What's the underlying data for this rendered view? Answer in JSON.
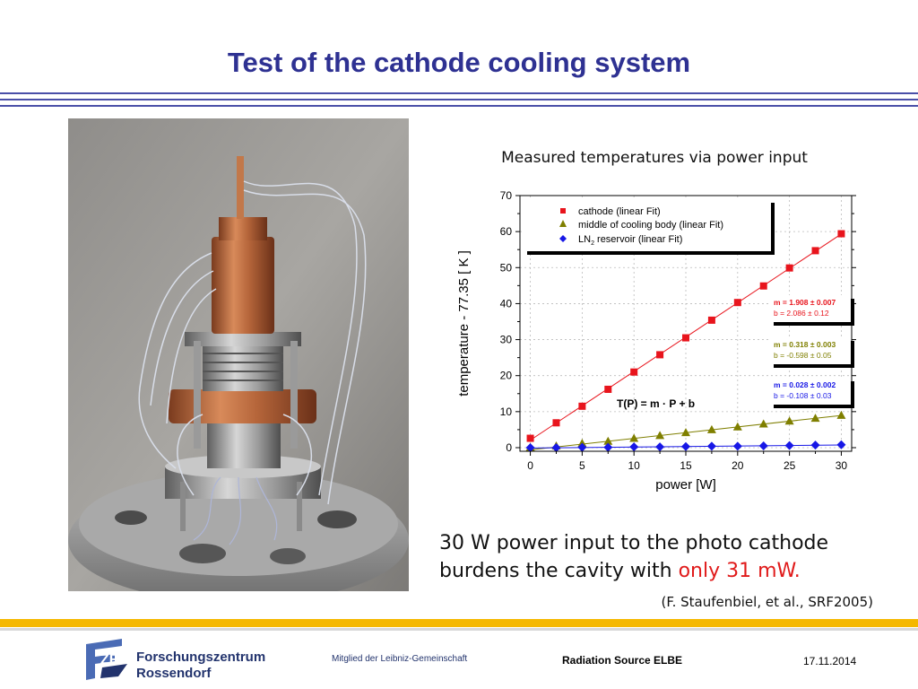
{
  "slide": {
    "title": "Test of the cathode cooling system"
  },
  "chart_title": "Measured temperatures via power input",
  "main_text": {
    "line1": "30 W power input to the photo cathode",
    "line2_prefix": "burdens the cavity with ",
    "line2_highlight": "only 31 mW."
  },
  "citation": "(F. Staufenbiel, et al., SRF2005)",
  "footer": {
    "logo_line1": "Forschungszentrum",
    "logo_line2": "Rossendorf",
    "member": "Mitglied der Leibniz-Gemeinschaft",
    "title": "Radiation Source ELBE",
    "date": "17.11.2014"
  },
  "colors": {
    "title_blue": "#2e3192",
    "cathode": "#e8141c",
    "middle": "#7f7f00",
    "ln2": "#1717e6",
    "highlight": "#e01a1a",
    "footer_yellow": "#f5b800"
  },
  "chart_data": {
    "type": "scatter",
    "xlabel": "power [W]",
    "ylabel": "temperature - 77.35 [ K ]",
    "xlim": [
      -1,
      31
    ],
    "ylim": [
      -1,
      70
    ],
    "xticks": [
      0,
      5,
      10,
      15,
      20,
      25,
      30
    ],
    "yticks": [
      0,
      10,
      20,
      30,
      40,
      50,
      60,
      70
    ],
    "grid": true,
    "legend_position": "top-left",
    "formula_annotation": "T(P) = m · P + b",
    "series": [
      {
        "name": "cathode (linear Fit)",
        "marker": "square",
        "color": "#e8141c",
        "x": [
          0,
          2.5,
          5,
          7.5,
          10,
          12.5,
          15,
          17.5,
          20,
          22.5,
          25,
          27.5,
          30
        ],
        "y": [
          2.6,
          6.9,
          11.5,
          16.2,
          21.0,
          25.8,
          30.5,
          35.4,
          40.3,
          44.9,
          49.9,
          54.7,
          59.4
        ],
        "fit": {
          "m": "m = 1.908 ± 0.007",
          "b": "b = 2.086 ± 0.12",
          "slope": 1.908,
          "intercept": 2.086
        }
      },
      {
        "name": "middle of cooling body (linear Fit)",
        "marker": "triangle",
        "color": "#7f7f00",
        "x": [
          0,
          2.5,
          5,
          7.5,
          10,
          12.5,
          15,
          17.5,
          20,
          22.5,
          25,
          27.5,
          30
        ],
        "y": [
          0.1,
          0.5,
          1.2,
          1.8,
          2.6,
          3.4,
          4.2,
          5.0,
          5.8,
          6.6,
          7.4,
          8.2,
          9.0
        ],
        "fit": {
          "m": "m = 0.318 ± 0.003",
          "b": "b = -0.598 ± 0.05",
          "slope": 0.318,
          "intercept": -0.598
        }
      },
      {
        "name_main": "LN",
        "name_sub": "2",
        "name_rest": " reservoir (linear Fit)",
        "marker": "diamond",
        "color": "#1717e6",
        "x": [
          0,
          2.5,
          5,
          7.5,
          10,
          12.5,
          15,
          17.5,
          20,
          22.5,
          25,
          27.5,
          30
        ],
        "y": [
          0.0,
          0.0,
          0.1,
          0.1,
          0.2,
          0.2,
          0.3,
          0.4,
          0.4,
          0.5,
          0.6,
          0.7,
          0.8
        ],
        "fit": {
          "m": "m = 0.028 ± 0.002",
          "b": "b = -0.108 ± 0.03",
          "slope": 0.028,
          "intercept": -0.108
        }
      }
    ]
  }
}
